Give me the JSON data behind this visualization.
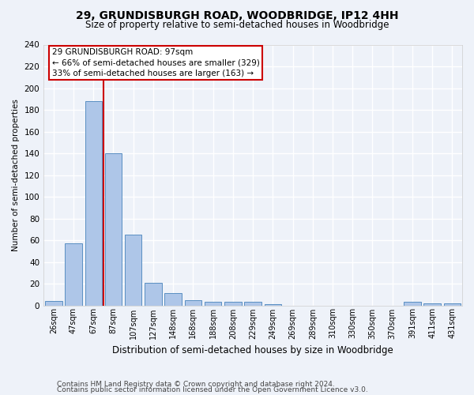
{
  "title1": "29, GRUNDISBURGH ROAD, WOODBRIDGE, IP12 4HH",
  "title2": "Size of property relative to semi-detached houses in Woodbridge",
  "xlabel": "Distribution of semi-detached houses by size in Woodbridge",
  "ylabel": "Number of semi-detached properties",
  "footer1": "Contains HM Land Registry data © Crown copyright and database right 2024.",
  "footer2": "Contains public sector information licensed under the Open Government Licence v3.0.",
  "annotation_title": "29 GRUNDISBURGH ROAD: 97sqm",
  "annotation_line1": "← 66% of semi-detached houses are smaller (329)",
  "annotation_line2": "33% of semi-detached houses are larger (163) →",
  "bar_labels": [
    "26sqm",
    "47sqm",
    "67sqm",
    "87sqm",
    "107sqm",
    "127sqm",
    "148sqm",
    "168sqm",
    "188sqm",
    "208sqm",
    "229sqm",
    "249sqm",
    "269sqm",
    "289sqm",
    "310sqm",
    "330sqm",
    "350sqm",
    "370sqm",
    "391sqm",
    "411sqm",
    "431sqm"
  ],
  "bar_values": [
    4,
    57,
    188,
    140,
    65,
    21,
    11,
    5,
    3,
    3,
    3,
    1,
    0,
    0,
    0,
    0,
    0,
    0,
    3,
    2,
    2
  ],
  "bar_color": "#aec6e8",
  "bar_edge_color": "#5a8fc2",
  "red_line_bin_index": 3,
  "ylim": [
    0,
    240
  ],
  "yticks": [
    0,
    20,
    40,
    60,
    80,
    100,
    120,
    140,
    160,
    180,
    200,
    220,
    240
  ],
  "background_color": "#eef2f9",
  "grid_color": "#ffffff",
  "annotation_box_color": "#ffffff",
  "annotation_box_edge": "#cc0000",
  "red_line_color": "#cc0000",
  "title1_fontsize": 10,
  "title2_fontsize": 8.5,
  "ylabel_fontsize": 7.5,
  "xlabel_fontsize": 8.5,
  "tick_fontsize": 7,
  "ytick_fontsize": 7.5,
  "annotation_fontsize": 7.5,
  "footer_fontsize": 6.5
}
